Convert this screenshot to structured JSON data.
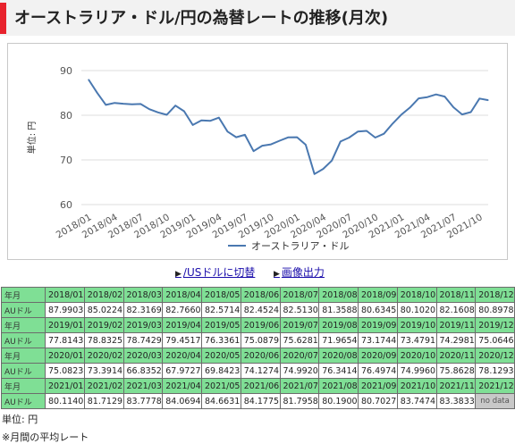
{
  "header": {
    "title": "オーストラリア・ドル/円の為替レートの推移(月次)",
    "accent_color": "#e8232d"
  },
  "links": {
    "switch_label": "/USドルに切替",
    "image_label": "画像出力"
  },
  "table": {
    "row_label_month": "年月",
    "row_label_value": "AUドル",
    "no_data": "no data",
    "rows": [
      {
        "months": [
          "2018/01",
          "2018/02",
          "2018/03",
          "2018/04",
          "2018/05",
          "2018/06",
          "2018/07",
          "2018/08",
          "2018/09",
          "2018/10",
          "2018/11",
          "2018/12"
        ],
        "values": [
          "87.9903",
          "85.0224",
          "82.3169",
          "82.7660",
          "82.5714",
          "82.4524",
          "82.5130",
          "81.3588",
          "80.6345",
          "80.1020",
          "82.1608",
          "80.8978"
        ]
      },
      {
        "months": [
          "2019/01",
          "2019/02",
          "2019/03",
          "2019/04",
          "2019/05",
          "2019/06",
          "2019/07",
          "2019/08",
          "2019/09",
          "2019/10",
          "2019/11",
          "2019/12"
        ],
        "values": [
          "77.8143",
          "78.8325",
          "78.7429",
          "79.4517",
          "76.3361",
          "75.0879",
          "75.6281",
          "71.9654",
          "73.1744",
          "73.4791",
          "74.2981",
          "75.0646"
        ]
      },
      {
        "months": [
          "2020/01",
          "2020/02",
          "2020/03",
          "2020/04",
          "2020/05",
          "2020/06",
          "2020/07",
          "2020/08",
          "2020/09",
          "2020/10",
          "2020/11",
          "2020/12"
        ],
        "values": [
          "75.0823",
          "73.3914",
          "66.8352",
          "67.9727",
          "69.8423",
          "74.1274",
          "74.9920",
          "76.3414",
          "76.4974",
          "74.9960",
          "75.8628",
          "78.1293"
        ]
      },
      {
        "months": [
          "2021/01",
          "2021/02",
          "2021/03",
          "2021/04",
          "2021/05",
          "2021/06",
          "2021/07",
          "2021/08",
          "2021/09",
          "2021/10",
          "2021/11",
          "2021/12"
        ],
        "values": [
          "80.1140",
          "81.7129",
          "83.7778",
          "84.0694",
          "84.6631",
          "84.1775",
          "81.7958",
          "80.1900",
          "80.7027",
          "83.7474",
          "83.3833",
          ""
        ]
      }
    ]
  },
  "footer": {
    "unit": "単位: 円",
    "note": "※月間の平均レート"
  },
  "chart_data": {
    "type": "line",
    "ylabel": "単位: 円",
    "ylim": [
      60,
      90
    ],
    "yticks": [
      60,
      70,
      80,
      90
    ],
    "xtick_labels": [
      "2018/01",
      "2018/04",
      "2018/07",
      "2018/10",
      "2019/01",
      "2019/04",
      "2019/07",
      "2019/10",
      "2020/01",
      "2020/04",
      "2020/07",
      "2020/10",
      "2021/01",
      "2021/04",
      "2021/07",
      "2021/10"
    ],
    "grid": true,
    "legend_position": "bottom",
    "series": [
      {
        "name": "オーストラリア・ドル",
        "color": "#4a78b0",
        "values": [
          87.9903,
          85.0224,
          82.3169,
          82.766,
          82.5714,
          82.4524,
          82.513,
          81.3588,
          80.6345,
          80.102,
          82.1608,
          80.8978,
          77.8143,
          78.8325,
          78.7429,
          79.4517,
          76.3361,
          75.0879,
          75.6281,
          71.9654,
          73.1744,
          73.4791,
          74.2981,
          75.0646,
          75.0823,
          73.3914,
          66.8352,
          67.9727,
          69.8423,
          74.1274,
          74.992,
          76.3414,
          76.4974,
          74.996,
          75.8628,
          78.1293,
          80.114,
          81.7129,
          83.7778,
          84.0694,
          84.6631,
          84.1775,
          81.7958,
          80.19,
          80.7027,
          83.7474,
          83.3833
        ]
      }
    ]
  }
}
